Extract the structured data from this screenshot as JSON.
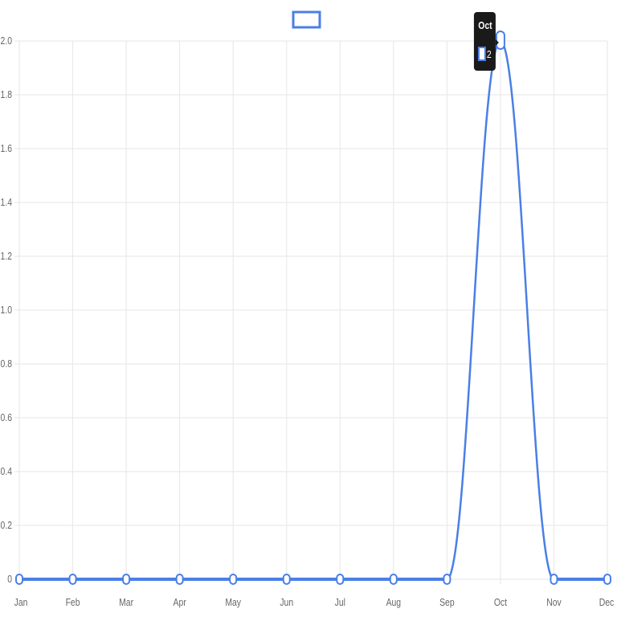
{
  "colors": {
    "series_line": "#4a7fe6",
    "point_fill": "#ffffff",
    "grid": "#e6e6e6",
    "tick_text": "#666666",
    "tooltip_bg": "#1a1a1a"
  },
  "chart_data": {
    "type": "line",
    "categories": [
      "Jan",
      "Feb",
      "Mar",
      "Apr",
      "May",
      "Jun",
      "Jul",
      "Aug",
      "Sep",
      "Oct",
      "Nov",
      "Dec"
    ],
    "series": [
      {
        "values": [
          0,
          0,
          0,
          0,
          0,
          0,
          0,
          0,
          0,
          2,
          0,
          0
        ]
      }
    ],
    "y_ticks": [
      "0",
      "0.2",
      "0.4",
      "0.6",
      "0.8",
      "1.0",
      "1.2",
      "1.4",
      "1.6",
      "1.8",
      "2.0"
    ],
    "ylim": [
      0,
      2
    ],
    "grid": true,
    "legend": "top-center",
    "tooltip": {
      "title": "Oct",
      "value": "2"
    }
  }
}
